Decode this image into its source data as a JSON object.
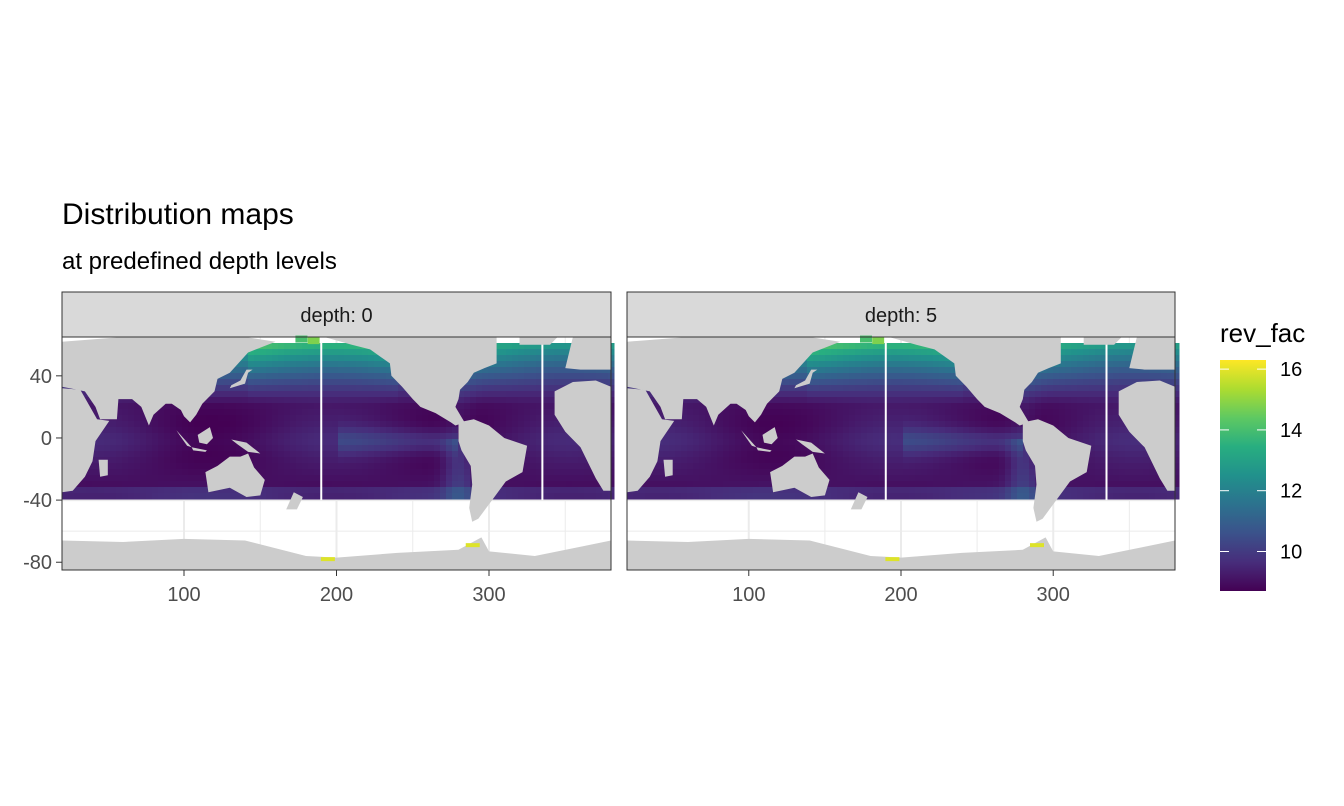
{
  "chart_data": {
    "type": "heatmap",
    "title": "Distribution maps",
    "subtitle": "at predefined depth levels",
    "facets": [
      {
        "label": "depth: 0",
        "depth": 0
      },
      {
        "label": "depth: 5",
        "depth": 5
      }
    ],
    "x_ticks": [
      100,
      200,
      300
    ],
    "y_ticks": [
      40,
      0,
      -40,
      -80
    ],
    "xlim": [
      20,
      380
    ],
    "ylim": [
      -85,
      65
    ],
    "grid": true,
    "legend": {
      "title": "rev_fac",
      "position": "right",
      "min": 8.7,
      "max": 16.3,
      "ticks": [
        10,
        12,
        14,
        16
      ],
      "palette": [
        "#440154",
        "#472D7B",
        "#3B528B",
        "#2C728E",
        "#21918C",
        "#28AE80",
        "#5EC962",
        "#ADDC30",
        "#FDE725"
      ]
    },
    "colors": {
      "land": "#cccccc",
      "panel_background": "#ffffff",
      "strip_background": "#d9d9d9",
      "grid": "#ebebeb",
      "border": "#333333"
    },
    "ocean_field": {
      "deep_tropics": 9.0,
      "north_pacific": 14.0,
      "high_latitude_max": 16.0
    }
  }
}
